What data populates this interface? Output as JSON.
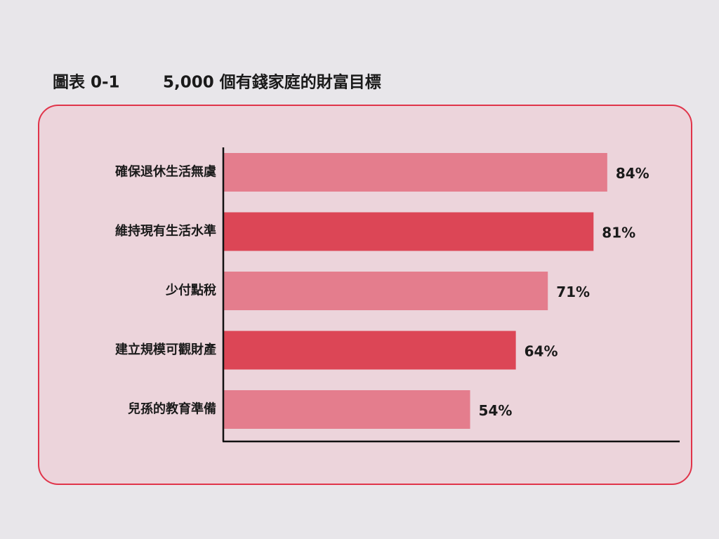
{
  "chart_data": {
    "type": "bar",
    "orientation": "horizontal",
    "figure_label": "圖表 0-1",
    "title": "5,000 個有錢家庭的財富目標",
    "categories": [
      "確保退休生活無虞",
      "維持現有生活水準",
      "少付點稅",
      "建立規模可觀財產",
      "兒孫的教育準備"
    ],
    "values": [
      84,
      81,
      71,
      64,
      54
    ],
    "value_labels": [
      "84%",
      "81%",
      "71%",
      "64%",
      "54%"
    ],
    "colors": [
      "#e47d8d",
      "#dc4656",
      "#e47d8d",
      "#dc4656",
      "#e47d8d"
    ]
  }
}
